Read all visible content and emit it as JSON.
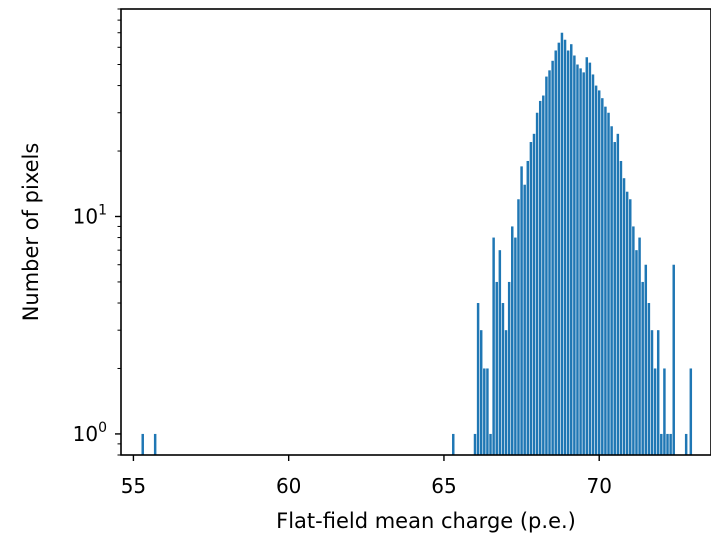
{
  "chart_data": {
    "type": "bar",
    "subtype": "histogram",
    "title": "",
    "xlabel": "Flat-field mean charge (p.e.)",
    "ylabel": "Number of pixels",
    "xlim": [
      54.6,
      73.6
    ],
    "ylim": [
      0.8,
      90
    ],
    "yscale": "log",
    "grid": false,
    "color": "#1f77b4",
    "xticks": [
      {
        "value": 55,
        "label": "55"
      },
      {
        "value": 60,
        "label": "60"
      },
      {
        "value": 65,
        "label": "65"
      },
      {
        "value": 70,
        "label": "70"
      }
    ],
    "yticks": [
      {
        "value": 1,
        "base": "10",
        "exp": "0"
      },
      {
        "value": 10,
        "base": "10",
        "exp": "1"
      }
    ],
    "bin_width": 0.08,
    "bins": [
      {
        "x": 55.3,
        "count": 1
      },
      {
        "x": 55.7,
        "count": 1
      },
      {
        "x": 65.3,
        "count": 1
      },
      {
        "x": 66.0,
        "count": 1
      },
      {
        "x": 66.1,
        "count": 4
      },
      {
        "x": 66.2,
        "count": 3
      },
      {
        "x": 66.3,
        "count": 2
      },
      {
        "x": 66.4,
        "count": 2
      },
      {
        "x": 66.5,
        "count": 1
      },
      {
        "x": 66.6,
        "count": 8
      },
      {
        "x": 66.7,
        "count": 5
      },
      {
        "x": 66.8,
        "count": 7
      },
      {
        "x": 66.9,
        "count": 4
      },
      {
        "x": 67.0,
        "count": 3
      },
      {
        "x": 67.1,
        "count": 5
      },
      {
        "x": 67.2,
        "count": 9
      },
      {
        "x": 67.3,
        "count": 8
      },
      {
        "x": 67.4,
        "count": 12
      },
      {
        "x": 67.5,
        "count": 17
      },
      {
        "x": 67.6,
        "count": 14
      },
      {
        "x": 67.7,
        "count": 18
      },
      {
        "x": 67.8,
        "count": 22
      },
      {
        "x": 67.9,
        "count": 24
      },
      {
        "x": 68.0,
        "count": 30
      },
      {
        "x": 68.1,
        "count": 34
      },
      {
        "x": 68.2,
        "count": 36
      },
      {
        "x": 68.3,
        "count": 44
      },
      {
        "x": 68.4,
        "count": 47
      },
      {
        "x": 68.5,
        "count": 52
      },
      {
        "x": 68.6,
        "count": 58
      },
      {
        "x": 68.7,
        "count": 63
      },
      {
        "x": 68.8,
        "count": 70
      },
      {
        "x": 68.9,
        "count": 65
      },
      {
        "x": 69.0,
        "count": 58
      },
      {
        "x": 69.1,
        "count": 62
      },
      {
        "x": 69.2,
        "count": 55
      },
      {
        "x": 69.3,
        "count": 50
      },
      {
        "x": 69.4,
        "count": 48
      },
      {
        "x": 69.5,
        "count": 46
      },
      {
        "x": 69.6,
        "count": 54
      },
      {
        "x": 69.7,
        "count": 51
      },
      {
        "x": 69.8,
        "count": 45
      },
      {
        "x": 69.9,
        "count": 40
      },
      {
        "x": 70.0,
        "count": 38
      },
      {
        "x": 70.1,
        "count": 35
      },
      {
        "x": 70.2,
        "count": 32
      },
      {
        "x": 70.3,
        "count": 30
      },
      {
        "x": 70.4,
        "count": 26
      },
      {
        "x": 70.5,
        "count": 22
      },
      {
        "x": 70.6,
        "count": 24
      },
      {
        "x": 70.7,
        "count": 18
      },
      {
        "x": 70.8,
        "count": 15
      },
      {
        "x": 70.9,
        "count": 13
      },
      {
        "x": 71.0,
        "count": 12
      },
      {
        "x": 71.1,
        "count": 9
      },
      {
        "x": 71.2,
        "count": 7
      },
      {
        "x": 71.3,
        "count": 8
      },
      {
        "x": 71.4,
        "count": 5
      },
      {
        "x": 71.5,
        "count": 6
      },
      {
        "x": 71.6,
        "count": 4
      },
      {
        "x": 71.7,
        "count": 3
      },
      {
        "x": 71.8,
        "count": 2
      },
      {
        "x": 71.9,
        "count": 3
      },
      {
        "x": 72.0,
        "count": 1
      },
      {
        "x": 72.1,
        "count": 2
      },
      {
        "x": 72.2,
        "count": 1
      },
      {
        "x": 72.3,
        "count": 1
      },
      {
        "x": 72.4,
        "count": 6
      },
      {
        "x": 72.8,
        "count": 1
      },
      {
        "x": 72.95,
        "count": 2
      }
    ]
  }
}
